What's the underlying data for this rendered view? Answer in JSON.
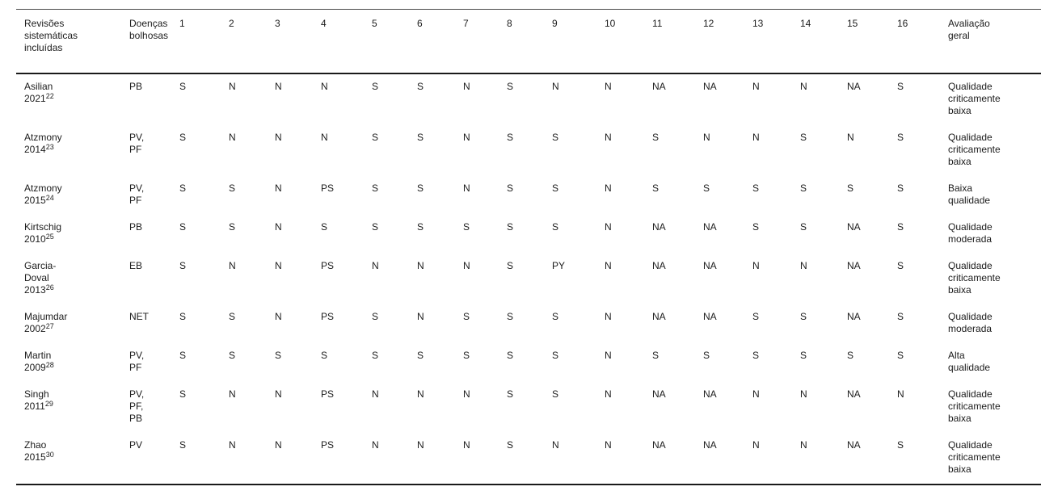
{
  "table": {
    "header": {
      "study": [
        "Revisões",
        "sistemáticas",
        "incluídas"
      ],
      "disease": [
        "Doenças",
        "bolhosas"
      ],
      "criteria": [
        "1",
        "2",
        "3",
        "4",
        "5",
        "6",
        "7",
        "8",
        "9",
        "10",
        "11",
        "12",
        "13",
        "14",
        "15",
        "16"
      ],
      "overall": [
        "Avaliação",
        "geral"
      ]
    },
    "rows": [
      {
        "study": [
          "Asilian",
          "2021"
        ],
        "ref": "22",
        "disease": [
          "PB"
        ],
        "scores": [
          "S",
          "N",
          "N",
          "N",
          "S",
          "S",
          "N",
          "S",
          "N",
          "N",
          "NA",
          "NA",
          "N",
          "N",
          "NA",
          "S"
        ],
        "overall": [
          "Qualidade",
          "criticamente",
          "baixa"
        ]
      },
      {
        "study": [
          "Atzmony",
          "2014"
        ],
        "ref": "23",
        "disease": [
          "PV,",
          "PF"
        ],
        "scores": [
          "S",
          "N",
          "N",
          "N",
          "S",
          "S",
          "N",
          "S",
          "S",
          "N",
          "S",
          "N",
          "N",
          "S",
          "N",
          "S"
        ],
        "overall": [
          "Qualidade",
          "criticamente",
          "baixa"
        ]
      },
      {
        "study": [
          "Atzmony",
          "2015"
        ],
        "ref": "24",
        "disease": [
          "PV,",
          "PF"
        ],
        "scores": [
          "S",
          "S",
          "N",
          "PS",
          "S",
          "S",
          "N",
          "S",
          "S",
          "N",
          "S",
          "S",
          "S",
          "S",
          "S",
          "S"
        ],
        "overall": [
          "Baixa",
          "qualidade"
        ]
      },
      {
        "study": [
          "Kirtschig",
          "2010"
        ],
        "ref": "25",
        "disease": [
          "PB"
        ],
        "scores": [
          "S",
          "S",
          "N",
          "S",
          "S",
          "S",
          "S",
          "S",
          "S",
          "N",
          "NA",
          "NA",
          "S",
          "S",
          "NA",
          "S"
        ],
        "overall": [
          "Qualidade",
          "moderada"
        ]
      },
      {
        "study": [
          "Garcia-",
          "Doval",
          "2013"
        ],
        "ref": "26",
        "disease": [
          "EB"
        ],
        "scores": [
          "S",
          "N",
          "N",
          "PS",
          "N",
          "N",
          "N",
          "S",
          "PY",
          "N",
          "NA",
          "NA",
          "N",
          "N",
          "NA",
          "S"
        ],
        "overall": [
          "Qualidade",
          "criticamente",
          "baixa"
        ]
      },
      {
        "study": [
          "Majumdar",
          "2002"
        ],
        "ref": "27",
        "disease": [
          "NET"
        ],
        "scores": [
          "S",
          "S",
          "N",
          "PS",
          "S",
          "N",
          "S",
          "S",
          "S",
          "N",
          "NA",
          "NA",
          "S",
          "S",
          "NA",
          "S"
        ],
        "overall": [
          "Qualidade",
          "moderada"
        ]
      },
      {
        "study": [
          "Martin",
          "2009"
        ],
        "ref": "28",
        "disease": [
          "PV,",
          "PF"
        ],
        "scores": [
          "S",
          "S",
          "S",
          "S",
          "S",
          "S",
          "S",
          "S",
          "S",
          "N",
          "S",
          "S",
          "S",
          "S",
          "S",
          "S"
        ],
        "overall": [
          "Alta",
          "qualidade"
        ]
      },
      {
        "study": [
          "Singh",
          "2011"
        ],
        "ref": "29",
        "disease": [
          "PV,",
          "PF,",
          "PB"
        ],
        "scores": [
          "S",
          "N",
          "N",
          "PS",
          "N",
          "N",
          "N",
          "S",
          "S",
          "N",
          "NA",
          "NA",
          "N",
          "N",
          "NA",
          "N"
        ],
        "overall": [
          "Qualidade",
          "criticamente",
          "baixa"
        ]
      },
      {
        "study": [
          "Zhao",
          "2015"
        ],
        "ref": "30",
        "disease": [
          "PV"
        ],
        "scores": [
          "S",
          "N",
          "N",
          "PS",
          "N",
          "N",
          "N",
          "S",
          "N",
          "N",
          "NA",
          "NA",
          "N",
          "N",
          "NA",
          "S"
        ],
        "overall": [
          "Qualidade",
          "criticamente",
          "baixa"
        ]
      }
    ]
  }
}
